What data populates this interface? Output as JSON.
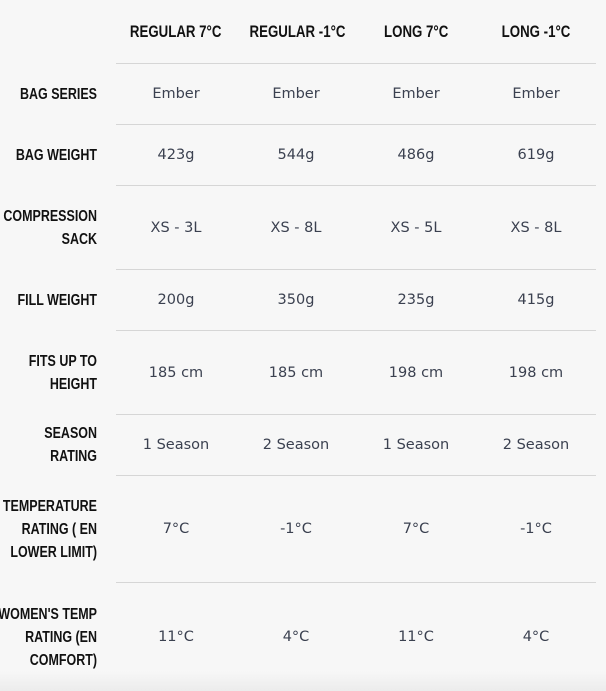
{
  "columns": [
    "REGULAR 7°C",
    "REGULAR -1°C",
    "LONG 7°C",
    "LONG -1°C"
  ],
  "rows": [
    {
      "label": "BAG SERIES",
      "values": [
        "Ember",
        "Ember",
        "Ember",
        "Ember"
      ]
    },
    {
      "label": "BAG WEIGHT",
      "values": [
        "423g",
        "544g",
        "486g",
        "619g"
      ]
    },
    {
      "label": "COMPRESSION SACK",
      "values": [
        "XS - 3L",
        "XS - 8L",
        "XS - 5L",
        "XS - 8L"
      ]
    },
    {
      "label": "FILL WEIGHT",
      "values": [
        "200g",
        "350g",
        "235g",
        "415g"
      ]
    },
    {
      "label": "FITS UP TO HEIGHT",
      "values": [
        "185 cm",
        "185 cm",
        "198 cm",
        "198 cm"
      ]
    },
    {
      "label": "SEASON RATING",
      "values": [
        "1 Season",
        "2 Season",
        "1 Season",
        "2 Season"
      ]
    },
    {
      "label": "TEMPERATURE RATING ( EN LOWER LIMIT)",
      "values": [
        "7°C",
        "-1°C",
        "7°C",
        "-1°C"
      ]
    },
    {
      "label": "WOMEN'S TEMP RATING (EN COMFORT)",
      "values": [
        "11°C",
        "4°C",
        "11°C",
        "4°C"
      ]
    }
  ]
}
